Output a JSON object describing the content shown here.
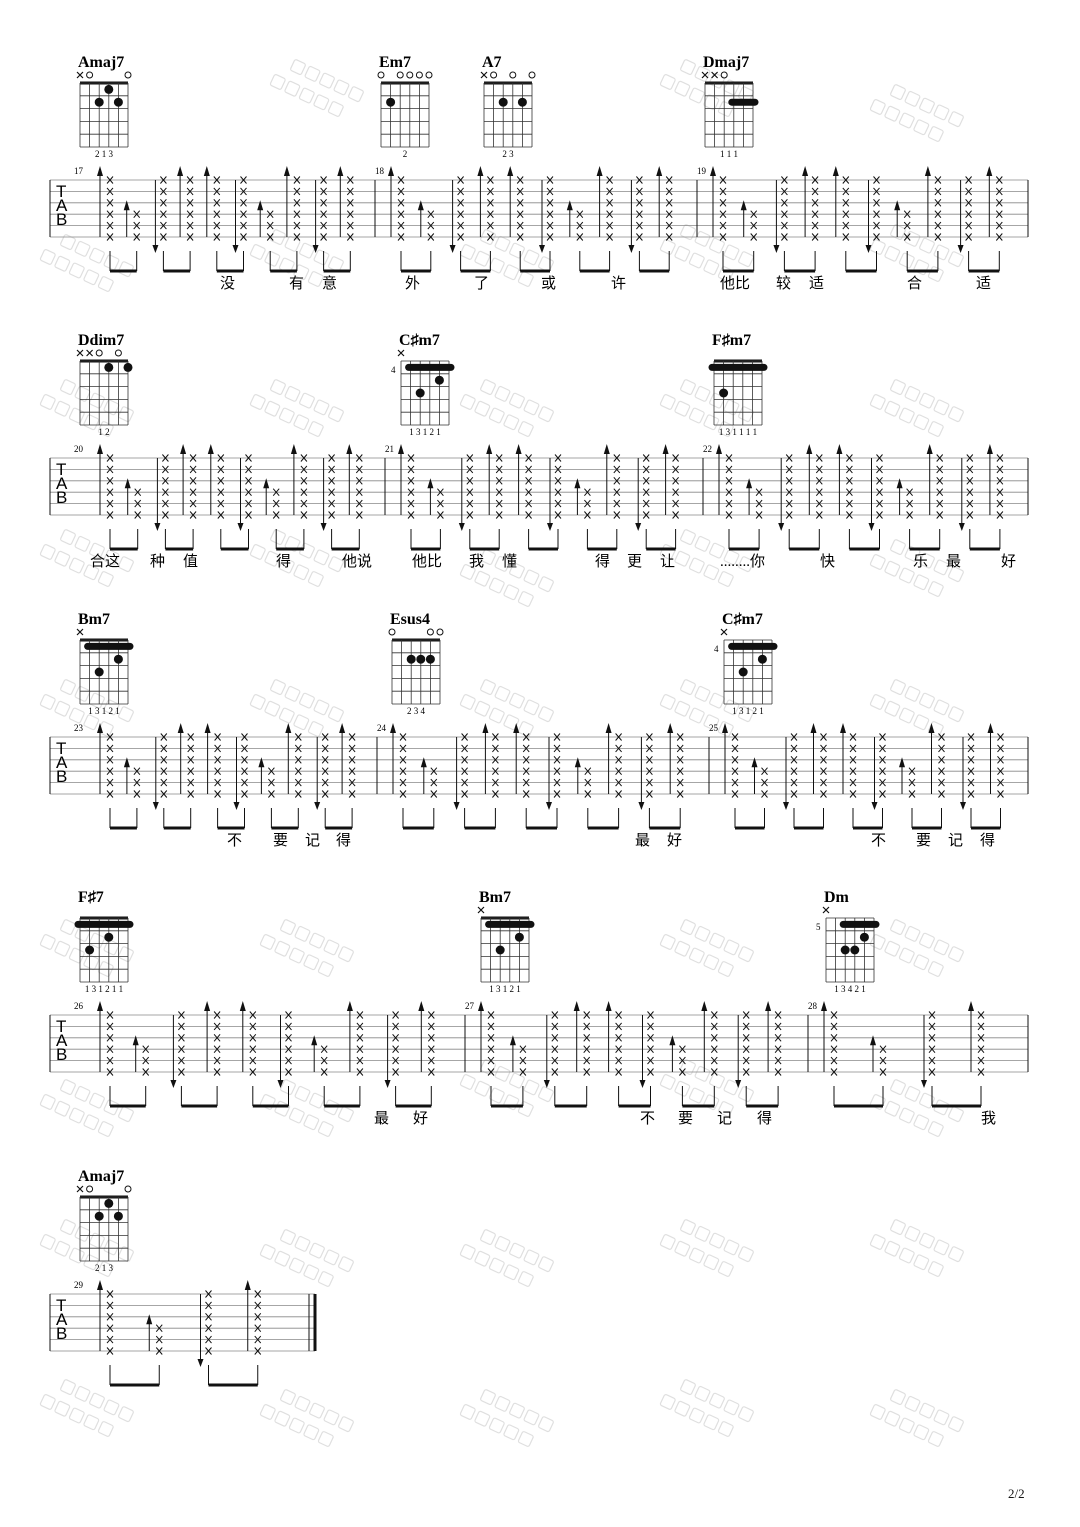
{
  "page_number": "2/2",
  "watermark": [
    "微信公众号",
    "71吉他教室"
  ],
  "colors": {
    "ink": "#111111",
    "staff": "#888888",
    "watermark": "#d8d8d8"
  },
  "systems": [
    {
      "measures": [
        "17",
        "18",
        "19"
      ],
      "chords": [
        {
          "name": "Amaj7",
          "top": [
            "x",
            "o",
            "",
            "",
            "",
            "o"
          ],
          "fret": "",
          "dots": [
            [
              4,
              2
            ],
            [
              3,
              1
            ],
            [
              2,
              2
            ]
          ],
          "barre": null,
          "fingering": "2 1 3"
        },
        {
          "name": "Em7",
          "top": [
            "o",
            "",
            "o",
            "o",
            "o",
            "o"
          ],
          "fret": "",
          "dots": [
            [
              5,
              2
            ]
          ],
          "barre": null,
          "fingering": "2"
        },
        {
          "name": "A7",
          "top": [
            "x",
            "o",
            "",
            "o",
            "",
            "o"
          ],
          "fret": "",
          "dots": [
            [
              4,
              2
            ],
            [
              2,
              2
            ]
          ],
          "barre": null,
          "fingering": "2 3"
        },
        {
          "name": "Dmaj7",
          "top": [
            "x",
            "x",
            "o",
            "",
            "",
            ""
          ],
          "fret": "",
          "dots": [],
          "barre": [
            2,
            3,
            1
          ],
          "fingering": "1 1 1"
        }
      ],
      "lyrics": [
        "没",
        "有",
        "意",
        "外",
        "了",
        "或",
        "许",
        "他比",
        "较",
        "适",
        "合",
        "适"
      ]
    },
    {
      "measures": [
        "20",
        "21",
        "22"
      ],
      "chords": [
        {
          "name": "Ddim7",
          "top": [
            "x",
            "x",
            "o",
            "",
            "o",
            ""
          ],
          "fret": "",
          "dots": [
            [
              3,
              1
            ],
            [
              1,
              1
            ]
          ],
          "barre": null,
          "fingering": "1 2"
        },
        {
          "name": "C♯m7",
          "top": [
            "x",
            "",
            "",
            "",
            "",
            ""
          ],
          "fret": "4",
          "dots": [
            [
              4,
              3
            ],
            [
              2,
              2
            ]
          ],
          "barre": [
            1,
            5,
            1
          ],
          "fingering": "1 3 1 2 1"
        },
        {
          "name": "F♯m7",
          "top": [
            "",
            "",
            "",
            "",
            "",
            ""
          ],
          "fret": "",
          "dots": [
            [
              5,
              3
            ]
          ],
          "barre": [
            1,
            6,
            1
          ],
          "fingering": "1 3 1 1 1 1"
        }
      ],
      "lyrics": [
        "合这",
        "种",
        "值",
        "得",
        "他说",
        "他比",
        "我",
        "懂",
        "得",
        "更",
        "让",
        "........你",
        "快",
        "乐",
        "最",
        "好"
      ]
    },
    {
      "measures": [
        "23",
        "24",
        "25"
      ],
      "chords": [
        {
          "name": "Bm7",
          "top": [
            "x",
            "",
            "",
            "",
            "",
            ""
          ],
          "fret": "",
          "dots": [
            [
              4,
              3
            ],
            [
              2,
              2
            ]
          ],
          "barre": [
            1,
            5,
            1
          ],
          "fingering": "1 3 1 2 1"
        },
        {
          "name": "Esus4",
          "top": [
            "o",
            "",
            "",
            "",
            "o",
            "o"
          ],
          "fret": "",
          "dots": [
            [
              4,
              2
            ],
            [
              3,
              2
            ],
            [
              2,
              2
            ]
          ],
          "barre": null,
          "fingering": "2 3 4"
        },
        {
          "name": "C♯m7",
          "top": [
            "x",
            "",
            "",
            "",
            "",
            ""
          ],
          "fret": "4",
          "dots": [
            [
              4,
              3
            ],
            [
              2,
              2
            ]
          ],
          "barre": [
            1,
            5,
            1
          ],
          "fingering": "1 3 1 2 1"
        }
      ],
      "lyrics": [
        "不",
        "要",
        "记",
        "得",
        "最",
        "好",
        "不",
        "要",
        "记",
        "得"
      ]
    },
    {
      "measures": [
        "26",
        "27",
        "28"
      ],
      "chords": [
        {
          "name": "F♯7",
          "top": [
            "",
            "",
            "",
            "",
            "",
            ""
          ],
          "fret": "",
          "dots": [
            [
              5,
              3
            ],
            [
              3,
              2
            ]
          ],
          "barre": [
            1,
            6,
            1
          ],
          "fingering": "1 3 1 2 1 1"
        },
        {
          "name": "Bm7",
          "top": [
            "x",
            "",
            "",
            "",
            "",
            ""
          ],
          "fret": "",
          "dots": [
            [
              4,
              3
            ],
            [
              2,
              2
            ]
          ],
          "barre": [
            1,
            5,
            1
          ],
          "fingering": "1 3 1 2 1"
        },
        {
          "name": "Dm",
          "top": [
            "x",
            "",
            "",
            "",
            "",
            ""
          ],
          "fret": "5",
          "dots": [
            [
              4,
              3
            ],
            [
              3,
              3
            ],
            [
              2,
              2
            ]
          ],
          "barre": [
            1,
            4,
            1
          ],
          "fingering": "1 3 4 2 1"
        }
      ],
      "lyrics": [
        "最",
        "好",
        "不",
        "要",
        "记",
        "得",
        "我"
      ]
    },
    {
      "measures": [
        "29"
      ],
      "chords": [
        {
          "name": "Amaj7",
          "top": [
            "x",
            "o",
            "",
            "",
            "",
            "o"
          ],
          "fret": "",
          "dots": [
            [
              4,
              2
            ],
            [
              3,
              1
            ],
            [
              2,
              2
            ]
          ],
          "barre": null,
          "fingering": "2 1 3"
        }
      ],
      "lyrics": []
    }
  ],
  "tab_clef": [
    "T",
    "A",
    "B"
  ]
}
